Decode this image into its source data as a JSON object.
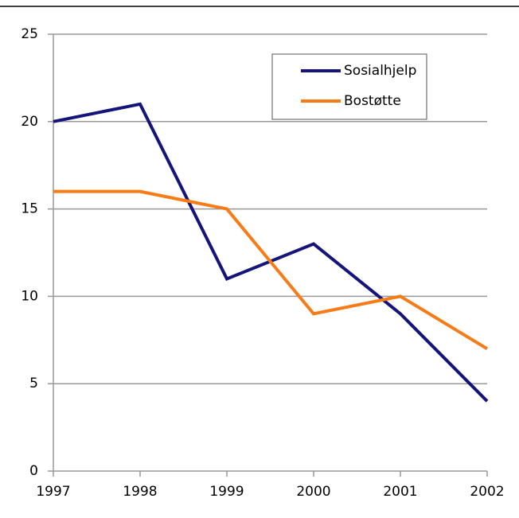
{
  "chart_data": {
    "type": "line",
    "categories": [
      "1997",
      "1998",
      "1999",
      "2000",
      "2001",
      "2002"
    ],
    "series": [
      {
        "name": "Sosialhjelp",
        "color": "#14147a",
        "values": [
          20,
          21,
          11,
          13,
          9,
          4
        ]
      },
      {
        "name": "Bostøtte",
        "color": "#f77b17",
        "values": [
          16,
          16,
          15,
          9,
          10,
          7
        ]
      }
    ],
    "ylim": [
      0,
      25
    ],
    "yticks": [
      0,
      5,
      10,
      15,
      20,
      25
    ],
    "grid": true,
    "legend": "upper right"
  }
}
